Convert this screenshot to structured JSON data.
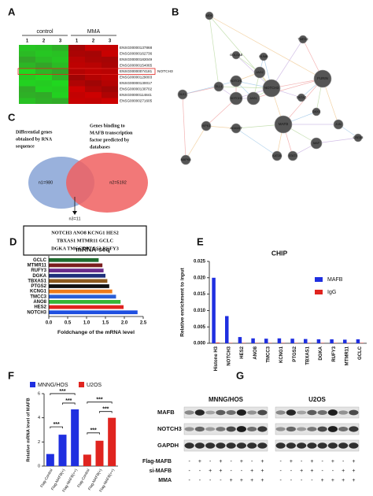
{
  "panel_labels": [
    "A",
    "B",
    "C",
    "D",
    "E",
    "F",
    "G"
  ],
  "heatmap": {
    "group_labels": [
      "control",
      "MMA"
    ],
    "column_labels": [
      "1",
      "2",
      "3",
      "1",
      "2",
      "3"
    ],
    "genes": [
      "ENSG00000137868",
      "ENSG00000162736",
      "ENSG00000183049",
      "ENSG00000154065",
      "ENSG00000074181",
      "ENSG00000129003",
      "ENSG00000130017",
      "ENSG00000130702",
      "ENSG00000114841",
      "ENSG00000271605"
    ],
    "highlight": "NOTCH3"
  },
  "network": {
    "nodes": [
      "MDK",
      "TMED2",
      "NUMB",
      "GOLGA5",
      "JAG2",
      "NOTCH3",
      "FURIN",
      "NOTCH1",
      "NOTCH2",
      "JAG1",
      "DNTAZ",
      "DLK1",
      "DLL1",
      "HIPK1",
      "ADAM17",
      "MAFB",
      "DAXX",
      "JUN",
      "MAF",
      "KAT2B",
      "STAT3",
      "CREB5",
      "MAPK8"
    ]
  },
  "venn": {
    "left_caption": [
      "Differential genes",
      "obtained by RNA",
      "sequence"
    ],
    "right_caption": [
      "Genes binding to",
      "MAFB transcription",
      "factor predicted by",
      "databases"
    ],
    "left_count": "n1=980",
    "right_count": "n2=5192",
    "overlap_count": "n3=11",
    "overlap_genes": [
      "NOTCH3  ANO8  KCNG1  HES2",
      "TBXAS1  MTMR11  GCLC",
      "DGKA  TMCC3  PTGS2  RUFY3"
    ]
  },
  "chart_data": [
    {
      "type": "hbar",
      "title": "mRNA-seq",
      "xlabel": "Foldchange of the mRNA level",
      "categories": [
        "GCLC",
        "MTMR11",
        "RUFY3",
        "DGKA",
        "TBXAS1",
        "PTGS2",
        "KCNG1",
        "TMCC3",
        "ANO8",
        "HES2",
        "NOTCH3"
      ],
      "values": [
        1.32,
        1.42,
        1.45,
        1.5,
        1.55,
        1.6,
        1.68,
        1.78,
        1.9,
        1.98,
        2.35
      ],
      "colors": [
        "#1e6b2e",
        "#7a1f1f",
        "#6a2c8c",
        "#1f2f7a",
        "#8c5a1e",
        "#111111",
        "#f07c1a",
        "#2a5fd6",
        "#35b535",
        "#e0241f",
        "#1f4fe0"
      ],
      "xlim": [
        0,
        2.5
      ],
      "xticks": [
        {
          "value": 0,
          "label": "0.0"
        },
        {
          "value": 0.5,
          "label": "0.5"
        },
        {
          "value": 1,
          "label": "1.0"
        },
        {
          "value": 1.5,
          "label": "1.5"
        },
        {
          "value": 2,
          "label": "2.0"
        },
        {
          "value": 2.5,
          "label": "2.5"
        }
      ]
    },
    {
      "type": "bar",
      "title": "CHIP",
      "ylabel": "Relative enrichment to input",
      "categories": [
        "Histone H3",
        "NOTCH3",
        "HES2",
        "ANO8",
        "TMCC3",
        "KCNG1",
        "PTGS2",
        "TBXAS1",
        "DGKA",
        "RUFY3",
        "MTMR11",
        "GCLC"
      ],
      "series": [
        {
          "name": "MAFB",
          "color": "#1f2fe0",
          "values": [
            0.02,
            0.0083,
            0.0019,
            0.0015,
            0.0014,
            0.0015,
            0.0014,
            0.0013,
            0.0012,
            0.0012,
            0.0011,
            0.0012
          ]
        },
        {
          "name": "IgG",
          "color": "#e0241f",
          "values": [
            0.0002,
            0.0001,
            0.0001,
            0.0001,
            0.0001,
            0.0001,
            0.0001,
            0.0001,
            0.0001,
            0.0001,
            0.0001,
            0.0001
          ]
        }
      ],
      "legend": "right",
      "ylim": [
        0,
        0.025
      ],
      "yticks": [
        {
          "value": 0,
          "label": "0.000"
        },
        {
          "value": 0.005,
          "label": "0.005"
        },
        {
          "value": 0.01,
          "label": "0.010"
        },
        {
          "value": 0.015,
          "label": "0.015"
        },
        {
          "value": 0.02,
          "label": "0.020"
        },
        {
          "value": 0.025,
          "label": "0.025"
        }
      ]
    },
    {
      "type": "bar",
      "ylabel": "Relative mRNA level of MAFB",
      "categories": [
        "Flag-Control",
        "Flag-MAFB(+)",
        "Flag-MAFB(++)",
        "Flag-Control",
        "Flag-MAFB(+)",
        "Flag-MAFB(++)"
      ],
      "series": [
        {
          "name": "MNNG/HOS",
          "color": "#1f2fe0",
          "values": [
            1.0,
            2.6,
            4.7,
            null,
            null,
            null
          ]
        },
        {
          "name": "U2OS",
          "color": "#e0241f",
          "values": [
            null,
            null,
            null,
            0.95,
            2.1,
            4.0
          ]
        }
      ],
      "annotations": [
        "***",
        "***",
        "***",
        "***",
        "***",
        "***"
      ],
      "legend": "top",
      "ylim": [
        0,
        6
      ],
      "yticks": [
        0,
        2,
        4,
        6
      ]
    }
  ],
  "blot": {
    "cell_lines": [
      "MNNG/HOS",
      "U2OS"
    ],
    "proteins": [
      "MAFB",
      "NOTCH3",
      "GAPDH"
    ],
    "treatments": [
      {
        "name": "Flag-MAFB",
        "signs": [
          "-",
          "+",
          "-",
          "+",
          "-",
          "+",
          "-",
          "+",
          "-",
          "+",
          "-",
          "+",
          "-",
          "+",
          "-",
          "+"
        ]
      },
      {
        "name": "si-MAFB",
        "signs": [
          "-",
          "-",
          "+",
          "+",
          "-",
          "-",
          "+",
          "+",
          "-",
          "-",
          "+",
          "+",
          "-",
          "-",
          "+",
          "+"
        ]
      },
      {
        "name": "MMA",
        "signs": [
          "-",
          "-",
          "-",
          "-",
          "+",
          "+",
          "+",
          "+",
          "-",
          "-",
          "-",
          "-",
          "+",
          "+",
          "+",
          "+"
        ]
      }
    ]
  }
}
